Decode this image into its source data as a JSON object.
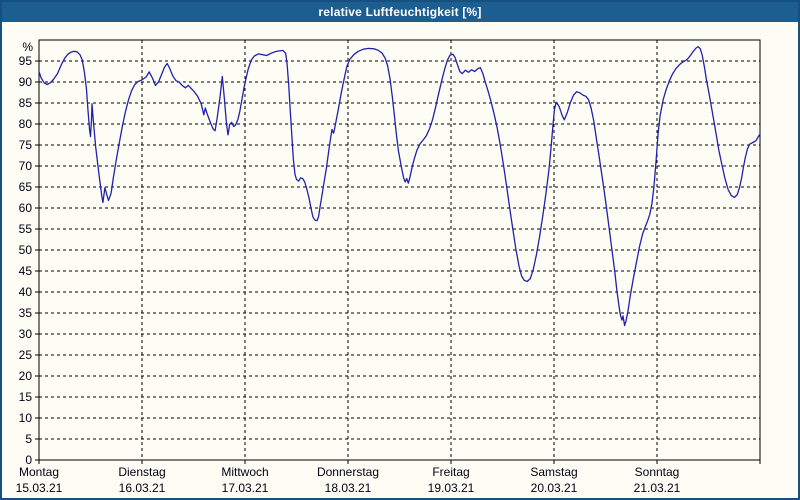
{
  "window": {
    "title": "relative Luftfeuchtigkeit [%]"
  },
  "colors": {
    "titlebar_bg": "#1d5e91",
    "title_text": "#ffffff",
    "window_border": "#16507e",
    "page_bg": "#fdfdf6",
    "axis": "#000000",
    "grid": "#000000",
    "tick_label": "#000010",
    "series_line": "#2121ad"
  },
  "chart_data": {
    "type": "line",
    "title": "relative Luftfeuchtigkeit [%]",
    "ylabel": "%",
    "unit_label": "%",
    "ylim": [
      0,
      100
    ],
    "y_ticks": [
      0,
      5,
      10,
      15,
      20,
      25,
      30,
      35,
      40,
      45,
      50,
      55,
      60,
      65,
      70,
      75,
      80,
      85,
      90,
      95
    ],
    "x_range_days": 7,
    "grid": "dashed",
    "legend_position": "none",
    "x_days": [
      {
        "label": "Montag",
        "date": "15.03.21"
      },
      {
        "label": "Dienstag",
        "date": "16.03.21"
      },
      {
        "label": "Mittwoch",
        "date": "17.03.21"
      },
      {
        "label": "Donnerstag",
        "date": "18.03.21"
      },
      {
        "label": "Freitag",
        "date": "19.03.21"
      },
      {
        "label": "Samstag",
        "date": "20.03.21"
      },
      {
        "label": "Sonntag",
        "date": "21.03.21"
      }
    ],
    "series": [
      {
        "name": "relative Luftfeuchtigkeit",
        "x_unit": "days since 15.03.21 00:00",
        "points": [
          [
            0.0,
            92.5
          ],
          [
            0.02,
            91.0
          ],
          [
            0.05,
            89.8
          ],
          [
            0.08,
            89.4
          ],
          [
            0.11,
            89.8
          ],
          [
            0.14,
            90.6
          ],
          [
            0.18,
            92.0
          ],
          [
            0.22,
            94.3
          ],
          [
            0.25,
            95.7
          ],
          [
            0.28,
            96.6
          ],
          [
            0.31,
            97.1
          ],
          [
            0.34,
            97.3
          ],
          [
            0.37,
            97.2
          ],
          [
            0.4,
            96.4
          ],
          [
            0.42,
            95.2
          ],
          [
            0.44,
            92.5
          ],
          [
            0.46,
            88.5
          ],
          [
            0.475,
            83.5
          ],
          [
            0.49,
            78.8
          ],
          [
            0.5,
            77.0
          ],
          [
            0.51,
            81.0
          ],
          [
            0.515,
            84.8
          ],
          [
            0.53,
            80.0
          ],
          [
            0.55,
            74.5
          ],
          [
            0.57,
            70.5
          ],
          [
            0.59,
            66.5
          ],
          [
            0.61,
            62.8
          ],
          [
            0.62,
            61.3
          ],
          [
            0.64,
            64.8
          ],
          [
            0.66,
            63.0
          ],
          [
            0.675,
            61.8
          ],
          [
            0.7,
            63.5
          ],
          [
            0.72,
            67.0
          ],
          [
            0.75,
            71.5
          ],
          [
            0.78,
            75.5
          ],
          [
            0.81,
            79.5
          ],
          [
            0.84,
            83.0
          ],
          [
            0.87,
            85.8
          ],
          [
            0.9,
            88.0
          ],
          [
            0.93,
            89.4
          ],
          [
            0.96,
            90.1
          ],
          [
            1.0,
            90.5
          ],
          [
            1.04,
            91.2
          ],
          [
            1.07,
            92.4
          ],
          [
            1.1,
            91.0
          ],
          [
            1.13,
            89.2
          ],
          [
            1.16,
            90.0
          ],
          [
            1.19,
            91.8
          ],
          [
            1.22,
            93.6
          ],
          [
            1.245,
            94.4
          ],
          [
            1.27,
            93.2
          ],
          [
            1.3,
            91.4
          ],
          [
            1.33,
            90.3
          ],
          [
            1.36,
            90.0
          ],
          [
            1.39,
            89.2
          ],
          [
            1.42,
            88.6
          ],
          [
            1.45,
            89.2
          ],
          [
            1.48,
            88.4
          ],
          [
            1.51,
            87.6
          ],
          [
            1.54,
            86.6
          ],
          [
            1.575,
            84.8
          ],
          [
            1.6,
            82.2
          ],
          [
            1.615,
            83.8
          ],
          [
            1.63,
            82.6
          ],
          [
            1.66,
            80.6
          ],
          [
            1.69,
            78.8
          ],
          [
            1.71,
            78.4
          ],
          [
            1.73,
            81.5
          ],
          [
            1.755,
            86.0
          ],
          [
            1.78,
            91.3
          ],
          [
            1.8,
            86.0
          ],
          [
            1.82,
            80.0
          ],
          [
            1.835,
            77.4
          ],
          [
            1.85,
            79.8
          ],
          [
            1.87,
            80.4
          ],
          [
            1.89,
            79.4
          ],
          [
            1.91,
            79.8
          ],
          [
            1.93,
            81.0
          ],
          [
            1.95,
            83.0
          ],
          [
            1.97,
            85.8
          ],
          [
            1.99,
            88.6
          ],
          [
            2.01,
            90.8
          ],
          [
            2.03,
            93.0
          ],
          [
            2.06,
            95.2
          ],
          [
            2.09,
            96.2
          ],
          [
            2.13,
            96.7
          ],
          [
            2.17,
            96.5
          ],
          [
            2.21,
            96.3
          ],
          [
            2.25,
            96.8
          ],
          [
            2.29,
            97.2
          ],
          [
            2.33,
            97.4
          ],
          [
            2.37,
            97.5
          ],
          [
            2.395,
            96.8
          ],
          [
            2.41,
            94.0
          ],
          [
            2.425,
            89.0
          ],
          [
            2.44,
            83.0
          ],
          [
            2.455,
            77.0
          ],
          [
            2.47,
            71.5
          ],
          [
            2.485,
            68.0
          ],
          [
            2.5,
            66.8
          ],
          [
            2.52,
            66.4
          ],
          [
            2.54,
            67.2
          ],
          [
            2.56,
            67.0
          ],
          [
            2.58,
            66.2
          ],
          [
            2.6,
            64.5
          ],
          [
            2.62,
            62.5
          ],
          [
            2.645,
            59.5
          ],
          [
            2.66,
            57.8
          ],
          [
            2.68,
            57.1
          ],
          [
            2.7,
            57.0
          ],
          [
            2.715,
            58.0
          ],
          [
            2.73,
            60.5
          ],
          [
            2.75,
            63.5
          ],
          [
            2.77,
            66.5
          ],
          [
            2.79,
            69.5
          ],
          [
            2.81,
            73.0
          ],
          [
            2.83,
            76.5
          ],
          [
            2.845,
            78.7
          ],
          [
            2.86,
            77.8
          ],
          [
            2.875,
            79.5
          ],
          [
            2.89,
            81.5
          ],
          [
            2.91,
            84.0
          ],
          [
            2.93,
            86.8
          ],
          [
            2.95,
            89.3
          ],
          [
            2.97,
            91.6
          ],
          [
            2.99,
            93.8
          ],
          [
            3.02,
            95.5
          ],
          [
            3.06,
            96.6
          ],
          [
            3.1,
            97.3
          ],
          [
            3.15,
            97.8
          ],
          [
            3.2,
            98.0
          ],
          [
            3.25,
            97.9
          ],
          [
            3.29,
            97.6
          ],
          [
            3.33,
            96.9
          ],
          [
            3.36,
            95.7
          ],
          [
            3.385,
            93.8
          ],
          [
            3.41,
            90.5
          ],
          [
            3.43,
            86.5
          ],
          [
            3.45,
            82.0
          ],
          [
            3.47,
            77.5
          ],
          [
            3.49,
            73.5
          ],
          [
            3.52,
            69.5
          ],
          [
            3.54,
            67.2
          ],
          [
            3.555,
            66.2
          ],
          [
            3.57,
            67.0
          ],
          [
            3.585,
            65.9
          ],
          [
            3.6,
            67.2
          ],
          [
            3.62,
            69.5
          ],
          [
            3.645,
            71.8
          ],
          [
            3.67,
            73.8
          ],
          [
            3.7,
            75.3
          ],
          [
            3.73,
            76.2
          ],
          [
            3.76,
            77.2
          ],
          [
            3.79,
            78.8
          ],
          [
            3.82,
            81.0
          ],
          [
            3.85,
            84.0
          ],
          [
            3.88,
            87.2
          ],
          [
            3.91,
            90.3
          ],
          [
            3.94,
            93.2
          ],
          [
            3.965,
            95.2
          ],
          [
            3.99,
            96.4
          ],
          [
            4.02,
            96.6
          ],
          [
            4.04,
            95.8
          ],
          [
            4.06,
            94.3
          ],
          [
            4.085,
            92.5
          ],
          [
            4.11,
            92.0
          ],
          [
            4.14,
            92.8
          ],
          [
            4.17,
            92.3
          ],
          [
            4.2,
            92.9
          ],
          [
            4.23,
            92.5
          ],
          [
            4.26,
            93.2
          ],
          [
            4.285,
            93.4
          ],
          [
            4.31,
            92.0
          ],
          [
            4.33,
            90.2
          ],
          [
            4.36,
            87.8
          ],
          [
            4.39,
            85.2
          ],
          [
            4.42,
            82.2
          ],
          [
            4.45,
            78.8
          ],
          [
            4.48,
            74.8
          ],
          [
            4.51,
            70.2
          ],
          [
            4.54,
            65.2
          ],
          [
            4.57,
            60.0
          ],
          [
            4.6,
            55.0
          ],
          [
            4.63,
            50.2
          ],
          [
            4.66,
            46.2
          ],
          [
            4.685,
            43.8
          ],
          [
            4.71,
            42.8
          ],
          [
            4.74,
            42.5
          ],
          [
            4.77,
            43.2
          ],
          [
            4.8,
            45.5
          ],
          [
            4.83,
            49.0
          ],
          [
            4.86,
            53.2
          ],
          [
            4.89,
            58.0
          ],
          [
            4.92,
            63.2
          ],
          [
            4.95,
            69.0
          ],
          [
            4.97,
            74.0
          ],
          [
            4.99,
            79.8
          ],
          [
            5.005,
            83.5
          ],
          [
            5.02,
            85.2
          ],
          [
            5.05,
            84.2
          ],
          [
            5.08,
            82.0
          ],
          [
            5.1,
            81.0
          ],
          [
            5.13,
            82.8
          ],
          [
            5.16,
            85.2
          ],
          [
            5.19,
            86.9
          ],
          [
            5.22,
            87.7
          ],
          [
            5.25,
            87.4
          ],
          [
            5.28,
            86.9
          ],
          [
            5.31,
            86.6
          ],
          [
            5.335,
            85.8
          ],
          [
            5.36,
            83.8
          ],
          [
            5.385,
            80.8
          ],
          [
            5.41,
            76.8
          ],
          [
            5.44,
            72.0
          ],
          [
            5.47,
            67.0
          ],
          [
            5.5,
            61.8
          ],
          [
            5.53,
            56.2
          ],
          [
            5.56,
            50.5
          ],
          [
            5.59,
            44.8
          ],
          [
            5.61,
            40.5
          ],
          [
            5.63,
            36.8
          ],
          [
            5.645,
            34.5
          ],
          [
            5.66,
            33.3
          ],
          [
            5.67,
            34.3
          ],
          [
            5.685,
            32.0
          ],
          [
            5.7,
            33.2
          ],
          [
            5.72,
            35.8
          ],
          [
            5.74,
            39.0
          ],
          [
            5.77,
            43.2
          ],
          [
            5.8,
            47.0
          ],
          [
            5.83,
            50.8
          ],
          [
            5.86,
            53.8
          ],
          [
            5.89,
            55.8
          ],
          [
            5.91,
            57.0
          ],
          [
            5.93,
            58.5
          ],
          [
            5.95,
            61.0
          ],
          [
            5.97,
            65.0
          ],
          [
            5.99,
            71.0
          ],
          [
            6.01,
            77.5
          ],
          [
            6.03,
            82.0
          ],
          [
            6.06,
            85.8
          ],
          [
            6.09,
            88.3
          ],
          [
            6.12,
            90.3
          ],
          [
            6.15,
            91.9
          ],
          [
            6.19,
            93.4
          ],
          [
            6.23,
            94.4
          ],
          [
            6.26,
            94.9
          ],
          [
            6.29,
            95.3
          ],
          [
            6.32,
            96.2
          ],
          [
            6.35,
            97.2
          ],
          [
            6.38,
            98.1
          ],
          [
            6.4,
            98.4
          ],
          [
            6.42,
            97.9
          ],
          [
            6.44,
            96.3
          ],
          [
            6.46,
            93.6
          ],
          [
            6.48,
            90.6
          ],
          [
            6.505,
            87.3
          ],
          [
            6.53,
            83.8
          ],
          [
            6.555,
            80.3
          ],
          [
            6.58,
            76.8
          ],
          [
            6.6,
            73.8
          ],
          [
            6.63,
            70.3
          ],
          [
            6.66,
            67.0
          ],
          [
            6.69,
            64.4
          ],
          [
            6.72,
            63.0
          ],
          [
            6.75,
            62.5
          ],
          [
            6.78,
            63.2
          ],
          [
            6.8,
            64.8
          ],
          [
            6.82,
            67.0
          ],
          [
            6.84,
            69.8
          ],
          [
            6.86,
            72.3
          ],
          [
            6.88,
            74.2
          ],
          [
            6.9,
            75.2
          ],
          [
            6.93,
            75.6
          ],
          [
            6.96,
            76.0
          ],
          [
            6.98,
            76.8
          ],
          [
            7.0,
            77.6
          ]
        ]
      }
    ]
  }
}
